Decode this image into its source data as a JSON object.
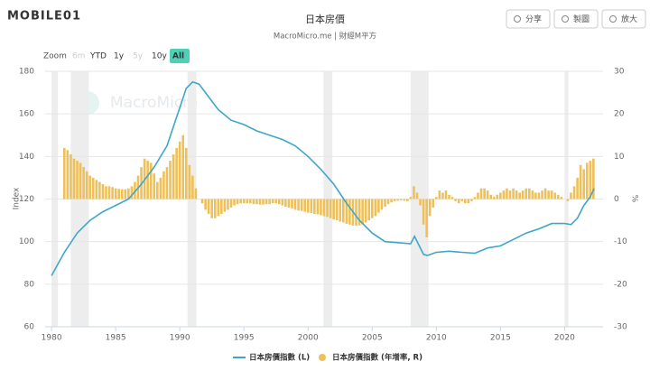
{
  "watermarks": {
    "site": "MOBILE01",
    "brand": "MacroMicro"
  },
  "toolbar": {
    "buttons": [
      "分享",
      "製圖",
      "放大"
    ],
    "zoom_label": "Zoom",
    "zoom": [
      "6m",
      "YTD",
      "1y",
      "5y",
      "10y",
      "All"
    ]
  },
  "chart_data": {
    "type": "line_bar",
    "title": "日本房價",
    "subtitle": "MacroMicro.me | 財經M平方",
    "ylabel": "Index",
    "y2label": "%",
    "xlim": [
      1979.5,
      2023
    ],
    "xticks": [
      1980,
      1985,
      1990,
      1995,
      2000,
      2005,
      2010,
      2015,
      2020
    ],
    "ylim": [
      60,
      180
    ],
    "yticks": [
      60,
      80,
      100,
      120,
      140,
      160,
      180
    ],
    "y2lim": [
      -30,
      30
    ],
    "y2ticks": [
      -30,
      -20,
      -10,
      0,
      10,
      20,
      30
    ],
    "grid": true,
    "bands": [
      [
        1980,
        1980.5
      ],
      [
        1981.5,
        1982.9
      ],
      [
        1990.6,
        1991.3
      ],
      [
        2001.2,
        2001.9
      ],
      [
        2008,
        2009.4
      ],
      [
        2020,
        2020.3
      ]
    ],
    "series": [
      {
        "name": "日本房價指數 (L)",
        "color": "#3ea6c8",
        "axis": "y",
        "kind": "line",
        "x": [
          1980,
          1981,
          1982,
          1983,
          1984,
          1985,
          1986,
          1987,
          1988,
          1989,
          1990,
          1990.5,
          1991,
          1991.5,
          1992,
          1993,
          1994,
          1995,
          1996,
          1997,
          1998,
          1999,
          2000,
          2001,
          2002,
          2003,
          2004,
          2005,
          2006,
          2007,
          2008,
          2008.3,
          2009,
          2009.3,
          2010,
          2011,
          2012,
          2013,
          2014,
          2015,
          2016,
          2017,
          2018,
          2019,
          2020,
          2020.5,
          2021,
          2021.5,
          2022,
          2022.3
        ],
        "values": [
          84,
          95,
          104,
          110,
          114,
          117,
          120,
          127,
          135,
          145,
          163,
          172,
          175,
          174,
          170,
          162,
          157,
          155,
          152,
          150,
          148,
          145,
          140,
          134,
          127,
          118,
          110,
          104,
          100,
          99.5,
          99,
          102.5,
          94,
          93.5,
          95,
          95.5,
          95,
          94.5,
          97,
          98,
          101,
          104,
          106,
          108.5,
          108.5,
          108,
          111,
          117,
          121,
          125
        ]
      },
      {
        "name": "日本房價指數 (年增率, R)",
        "color": "#eec05a",
        "axis": "y2",
        "kind": "bar",
        "x": [
          1981,
          1981.25,
          1981.5,
          1981.75,
          1982,
          1982.25,
          1982.5,
          1982.75,
          1983,
          1983.25,
          1983.5,
          1983.75,
          1984,
          1984.25,
          1984.5,
          1984.75,
          1985,
          1985.25,
          1985.5,
          1985.75,
          1986,
          1986.25,
          1986.5,
          1986.75,
          1987,
          1987.25,
          1987.5,
          1987.75,
          1988,
          1988.25,
          1988.5,
          1988.75,
          1989,
          1989.25,
          1989.5,
          1989.75,
          1990,
          1990.25,
          1990.5,
          1990.75,
          1991,
          1991.25,
          1991.5,
          1991.75,
          1992,
          1992.25,
          1992.5,
          1992.75,
          1993,
          1993.25,
          1993.5,
          1993.75,
          1994,
          1994.25,
          1994.5,
          1994.75,
          1995,
          1995.25,
          1995.5,
          1995.75,
          1996,
          1996.25,
          1996.5,
          1996.75,
          1997,
          1997.25,
          1997.5,
          1997.75,
          1998,
          1998.25,
          1998.5,
          1998.75,
          1999,
          1999.25,
          1999.5,
          1999.75,
          2000,
          2000.25,
          2000.5,
          2000.75,
          2001,
          2001.25,
          2001.5,
          2001.75,
          2002,
          2002.25,
          2002.5,
          2002.75,
          2003,
          2003.25,
          2003.5,
          2003.75,
          2004,
          2004.25,
          2004.5,
          2004.75,
          2005,
          2005.25,
          2005.5,
          2005.75,
          2006,
          2006.25,
          2006.5,
          2006.75,
          2007,
          2007.25,
          2007.5,
          2007.75,
          2008,
          2008.25,
          2008.5,
          2008.75,
          2009,
          2009.25,
          2009.5,
          2009.75,
          2010,
          2010.25,
          2010.5,
          2010.75,
          2011,
          2011.25,
          2011.5,
          2011.75,
          2012,
          2012.25,
          2012.5,
          2012.75,
          2013,
          2013.25,
          2013.5,
          2013.75,
          2014,
          2014.25,
          2014.5,
          2014.75,
          2015,
          2015.25,
          2015.5,
          2015.75,
          2016,
          2016.25,
          2016.5,
          2016.75,
          2017,
          2017.25,
          2017.5,
          2017.75,
          2018,
          2018.25,
          2018.5,
          2018.75,
          2019,
          2019.25,
          2019.5,
          2019.75,
          2020,
          2020.25,
          2020.5,
          2020.75,
          2021,
          2021.25,
          2021.5,
          2021.75,
          2022,
          2022.25
        ],
        "values": [
          12,
          11.5,
          10.5,
          9.5,
          9,
          8.5,
          7.5,
          6.5,
          5.5,
          5,
          4.5,
          4,
          3.5,
          3,
          3,
          2.8,
          2.5,
          2.4,
          2.3,
          2.3,
          2.5,
          3,
          4,
          5.5,
          7.5,
          9.5,
          9,
          8.5,
          6,
          4,
          5,
          6.5,
          7.5,
          9,
          10.5,
          12,
          13.5,
          15,
          12,
          8,
          5.5,
          2.5,
          0,
          -1,
          -2.5,
          -3.5,
          -4.5,
          -4.5,
          -4,
          -3.5,
          -3,
          -2.5,
          -2,
          -1.5,
          -1.2,
          -1,
          -1,
          -1,
          -1,
          -1.2,
          -1.2,
          -1.3,
          -1.3,
          -1.2,
          -1.2,
          -1,
          -1,
          -1.2,
          -1.5,
          -1.8,
          -2,
          -2.2,
          -2.5,
          -2.7,
          -2.8,
          -3,
          -3.2,
          -3.3,
          -3.5,
          -3.6,
          -3.8,
          -4,
          -4.2,
          -4.5,
          -4.8,
          -5,
          -5.3,
          -5.5,
          -5.8,
          -6,
          -6.2,
          -6.3,
          -6.2,
          -6,
          -5.5,
          -5,
          -4.5,
          -4,
          -3.2,
          -2.5,
          -1.8,
          -1.2,
          -0.8,
          -0.5,
          -0.4,
          -0.3,
          -0.4,
          -0.5,
          0.5,
          3,
          1.5,
          -1.5,
          -6,
          -9,
          -4,
          -2,
          0.5,
          2,
          1.5,
          2,
          1,
          0.5,
          -0.5,
          -1,
          -0.5,
          -1,
          -1,
          -0.5,
          0.5,
          1.5,
          2.5,
          2.5,
          2,
          1,
          0.5,
          1,
          1.5,
          2,
          2.5,
          2,
          2.5,
          2,
          1.5,
          2,
          2.5,
          2.5,
          2,
          1.5,
          1.5,
          2,
          2.5,
          2,
          2,
          1.5,
          1,
          0.5,
          0,
          -0.5,
          1.5,
          3,
          5,
          8,
          7,
          8.5,
          9,
          9.5
        ]
      }
    ]
  }
}
